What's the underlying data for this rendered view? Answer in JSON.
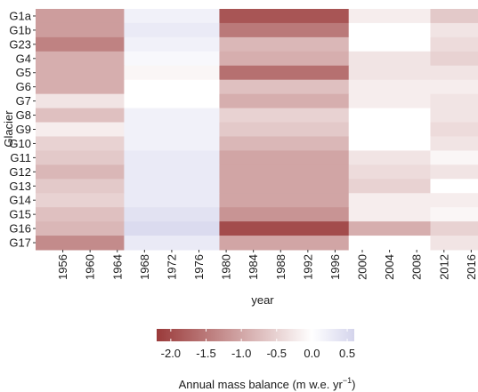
{
  "chart_data": {
    "type": "heatmap",
    "y_label": "Glacier",
    "x_label": "year",
    "rows": [
      "G1a",
      "G1b",
      "G23",
      "G4",
      "G5",
      "G6",
      "G7",
      "G8",
      "G9",
      "G10",
      "G11",
      "G12",
      "G13",
      "G14",
      "G15",
      "G16",
      "G17"
    ],
    "x_edges": [
      1952,
      1965,
      1979,
      1998,
      2010,
      2017
    ],
    "values": [
      [
        -1.1,
        0.2,
        -1.9,
        -0.2,
        -0.6
      ],
      [
        -1.1,
        0.3,
        -1.5,
        0.0,
        -0.3
      ],
      [
        -1.4,
        0.2,
        -0.8,
        0.0,
        -0.4
      ],
      [
        -0.9,
        0.1,
        -0.9,
        -0.3,
        -0.5
      ],
      [
        -0.9,
        -0.1,
        -1.6,
        -0.3,
        -0.3
      ],
      [
        -0.9,
        0.0,
        -0.7,
        -0.2,
        -0.2
      ],
      [
        -0.3,
        0.0,
        -0.9,
        -0.2,
        -0.3
      ],
      [
        -0.7,
        0.2,
        -0.5,
        0.0,
        -0.3
      ],
      [
        -0.2,
        0.2,
        -0.6,
        0.0,
        -0.4
      ],
      [
        -0.5,
        0.2,
        -0.8,
        0.0,
        -0.3
      ],
      [
        -0.6,
        0.3,
        -1.0,
        -0.3,
        -0.1
      ],
      [
        -0.8,
        0.3,
        -1.0,
        -0.4,
        -0.3
      ],
      [
        -0.6,
        0.3,
        -1.0,
        -0.5,
        0.0
      ],
      [
        -0.5,
        0.3,
        -1.0,
        -0.2,
        -0.2
      ],
      [
        -0.7,
        0.4,
        -1.2,
        -0.2,
        -0.1
      ],
      [
        -0.8,
        0.5,
        -2.0,
        -0.9,
        -0.5
      ],
      [
        -1.3,
        0.3,
        -1.0,
        0.0,
        -0.3
      ]
    ],
    "xlim": [
      1952,
      2017
    ],
    "xticks": [
      1956,
      1960,
      1964,
      1968,
      1972,
      1976,
      1980,
      1984,
      1988,
      1992,
      1996,
      2000,
      2004,
      2008,
      2012,
      2016
    ],
    "colorscale": {
      "low": "#9a3a3a",
      "mid": "#ffffff",
      "high": "#d4d4ec"
    },
    "clim": [
      -2.2,
      0.6
    ],
    "cticks": [
      {
        "value": -2.0,
        "label": "-2.0"
      },
      -1.5,
      {
        "value": -1.0,
        "label": "-1.0"
      },
      -0.5,
      {
        "value": 0.0,
        "label": "0.0"
      },
      0.5
    ],
    "legend_title": "Annual mass balance (m w.e. yr",
    "legend_title_sup": "−1",
    "legend_title_end": ")"
  }
}
